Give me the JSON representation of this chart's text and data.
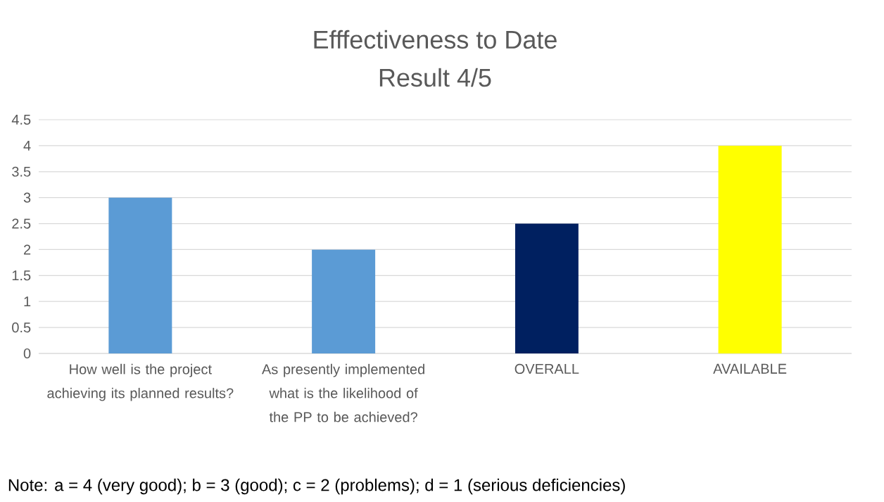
{
  "chart_data": {
    "type": "bar",
    "title": "Efffectiveness to Date",
    "subtitle": "Result 4/5",
    "categories": [
      "How well is the project achieving its planned results?",
      "As presently implemented what is the likelihood of the PP to be achieved?",
      "OVERALL",
      "AVAILABLE"
    ],
    "values": [
      3,
      2,
      2.5,
      4
    ],
    "colors": [
      "#5b9bd5",
      "#5b9bd5",
      "#002060",
      "#ffff00"
    ],
    "ylim": [
      0,
      4.5
    ],
    "yticks": [
      0,
      0.5,
      1,
      1.5,
      2,
      2.5,
      3,
      3.5,
      4,
      4.5
    ],
    "grid": "y",
    "annotations": [
      "Note:  a = 4  (very good); b = 3 (good); c = 2 (problems); d = 1 (serious deficiencies)"
    ]
  }
}
